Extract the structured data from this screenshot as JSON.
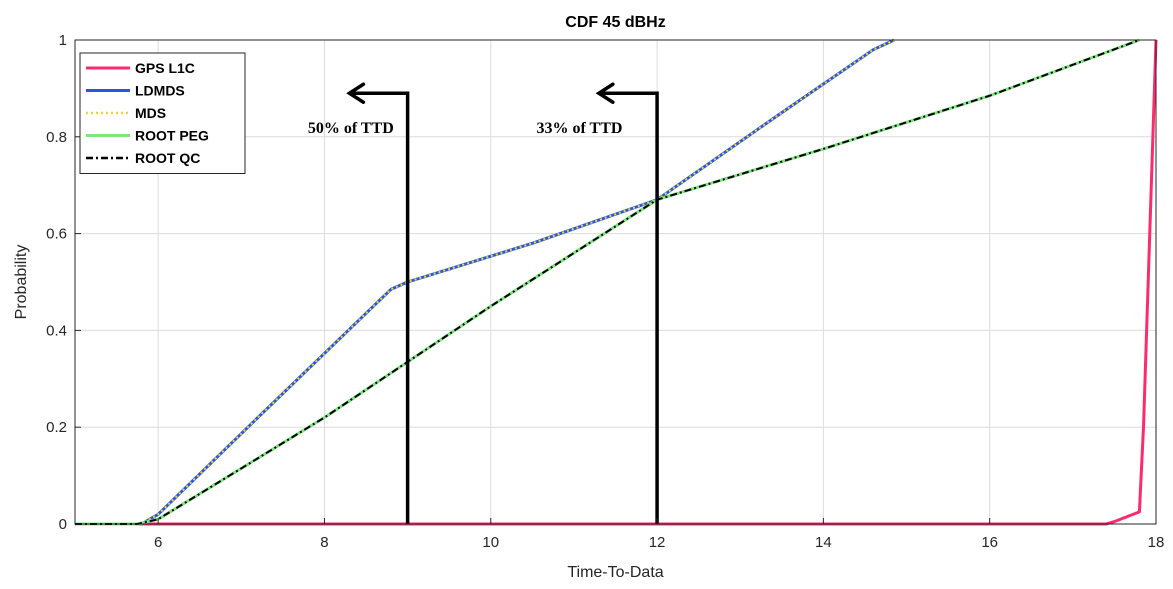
{
  "chart_data": {
    "type": "line",
    "title": "CDF 45 dBHz",
    "xlabel": "Time-To-Data",
    "ylabel": "Probability",
    "xlim": [
      5,
      18
    ],
    "ylim": [
      0,
      1
    ],
    "xticks": [
      6,
      8,
      10,
      12,
      14,
      16,
      18
    ],
    "yticks": [
      0,
      0.2,
      0.4,
      0.6,
      0.8,
      1
    ],
    "xtick_labels": [
      "6",
      "8",
      "10",
      "12",
      "14",
      "16",
      "18"
    ],
    "ytick_labels": [
      "0",
      "0.2",
      "0.4",
      "0.6",
      "0.8",
      "1"
    ],
    "grid": true,
    "legend_position": "top-left",
    "series": [
      {
        "name": "GPS L1C",
        "color": "#ff2a6d",
        "style": "solid",
        "x": [
          5,
          17.4,
          17.5,
          17.8,
          17.85,
          18.0
        ],
        "y": [
          0,
          0,
          0.005,
          0.025,
          0.2,
          1.0
        ]
      },
      {
        "name": "LDMDS",
        "color": "#2858d8",
        "style": "solid",
        "x": [
          5,
          5.8,
          6.0,
          7.2,
          8.8,
          9.0,
          10.5,
          12.0,
          13.5,
          14.6,
          14.85
        ],
        "y": [
          0,
          0,
          0.02,
          0.22,
          0.485,
          0.5,
          0.58,
          0.67,
          0.85,
          0.98,
          1.0
        ]
      },
      {
        "name": "MDS",
        "color": "#f2d43c",
        "style": "dotted",
        "x": [
          5,
          5.8,
          6.0,
          7.2,
          8.8,
          9.0,
          10.5,
          12.0,
          13.5,
          14.6,
          14.85
        ],
        "y": [
          0,
          0,
          0.02,
          0.22,
          0.485,
          0.5,
          0.58,
          0.67,
          0.85,
          0.98,
          1.0
        ]
      },
      {
        "name": "ROOT PEG",
        "color": "#7ee67e",
        "style": "solid",
        "x": [
          5,
          5.75,
          6.0,
          8.0,
          9.0,
          10.0,
          12.0,
          14.0,
          16.0,
          17.8
        ],
        "y": [
          0,
          0,
          0.01,
          0.22,
          0.335,
          0.45,
          0.67,
          0.775,
          0.885,
          1.0
        ]
      },
      {
        "name": "ROOT QC",
        "color": "#000000",
        "style": "dashdot",
        "x": [
          5,
          5.75,
          6.0,
          8.0,
          9.0,
          10.0,
          12.0,
          14.0,
          16.0,
          17.8
        ],
        "y": [
          0,
          0,
          0.01,
          0.22,
          0.335,
          0.45,
          0.67,
          0.775,
          0.885,
          1.0
        ]
      }
    ],
    "annotations": [
      {
        "label": "50% of TTD",
        "x_line": 9,
        "arrow_tip": [
          8.3,
          0.89
        ],
        "text_anchor": [
          7.8,
          0.82
        ]
      },
      {
        "label": "33% of TTD",
        "x_line": 12,
        "arrow_tip": [
          11.3,
          0.89
        ],
        "text_anchor": [
          10.55,
          0.82
        ]
      }
    ]
  }
}
